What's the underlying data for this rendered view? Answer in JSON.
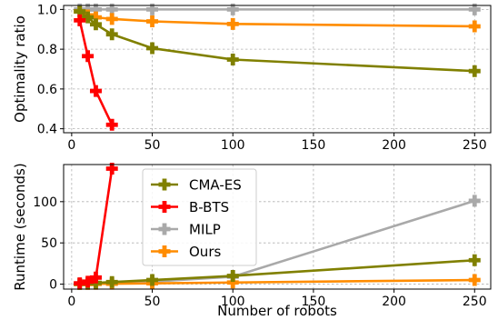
{
  "chart_data": [
    {
      "type": "line",
      "title": "",
      "xlabel": "",
      "ylabel": "Optimality ratio",
      "xlim": [
        -5,
        260
      ],
      "ylim": [
        0.38,
        1.02
      ],
      "xticks": [
        0,
        50,
        100,
        150,
        200,
        250
      ],
      "yticks": [
        0.4,
        0.6,
        0.8,
        1.0
      ],
      "ytick_labels": [
        "0.4",
        "0.6",
        "0.8",
        "1.0"
      ],
      "grid": true,
      "series": [
        {
          "name": "CMA-ES",
          "color": "#808000",
          "x": [
            5,
            10,
            15,
            25,
            50,
            100,
            250
          ],
          "y": [
            0.99,
            0.96,
            0.925,
            0.875,
            0.805,
            0.748,
            0.69
          ]
        },
        {
          "name": "B-BTS",
          "color": "#ff0000",
          "x": [
            5,
            10,
            15,
            25
          ],
          "y": [
            0.945,
            0.765,
            0.59,
            0.42
          ]
        },
        {
          "name": "MILP",
          "color": "#a9a9a9",
          "x": [
            5,
            10,
            15,
            25,
            50,
            100,
            250
          ],
          "y": [
            1.0,
            1.0,
            1.0,
            1.0,
            1.0,
            1.0,
            1.0
          ]
        },
        {
          "name": "Ours",
          "color": "#ff8c00",
          "x": [
            5,
            10,
            15,
            25,
            50,
            100,
            250
          ],
          "y": [
            0.99,
            0.97,
            0.96,
            0.952,
            0.94,
            0.927,
            0.915
          ]
        }
      ]
    },
    {
      "type": "line",
      "title": "",
      "xlabel": "Number of robots",
      "ylabel": "Runtime (seconds)",
      "xlim": [
        -5,
        260
      ],
      "ylim": [
        -6,
        145
      ],
      "xticks": [
        0,
        50,
        100,
        150,
        200,
        250
      ],
      "yticks": [
        0,
        50,
        100
      ],
      "ytick_labels": [
        "0",
        "50",
        "100"
      ],
      "grid": true,
      "legend": "upper-left",
      "series": [
        {
          "name": "CMA-ES",
          "color": "#808000",
          "x": [
            5,
            10,
            15,
            25,
            50,
            100,
            250
          ],
          "y": [
            0.5,
            1.0,
            1.5,
            2.5,
            5.0,
            10.0,
            29.0
          ]
        },
        {
          "name": "B-BTS",
          "color": "#ff0000",
          "x": [
            5,
            10,
            15,
            25
          ],
          "y": [
            1.0,
            3.0,
            8.0,
            140.0
          ]
        },
        {
          "name": "MILP",
          "color": "#a9a9a9",
          "x": [
            5,
            10,
            15,
            25,
            50,
            100,
            250
          ],
          "y": [
            0.3,
            0.5,
            0.8,
            1.2,
            3.0,
            9.0,
            101.0
          ]
        },
        {
          "name": "Ours",
          "color": "#ff8c00",
          "x": [
            5,
            10,
            15,
            25,
            50,
            100,
            250
          ],
          "y": [
            0.1,
            0.2,
            0.3,
            0.5,
            1.0,
            2.0,
            5.0
          ]
        }
      ]
    }
  ]
}
